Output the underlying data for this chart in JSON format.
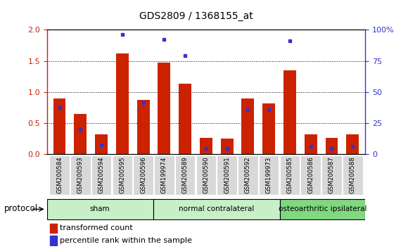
{
  "title": "GDS2809 / 1368155_at",
  "samples": [
    "GSM200584",
    "GSM200593",
    "GSM200594",
    "GSM200595",
    "GSM200596",
    "GSM199974",
    "GSM200589",
    "GSM200590",
    "GSM200591",
    "GSM200592",
    "GSM199973",
    "GSM200585",
    "GSM200586",
    "GSM200587",
    "GSM200588"
  ],
  "red_values": [
    0.9,
    0.65,
    0.32,
    1.62,
    0.88,
    1.48,
    1.14,
    0.26,
    0.25,
    0.9,
    0.82,
    1.35,
    0.32,
    0.27,
    0.32
  ],
  "blue_values": [
    0.75,
    0.4,
    0.15,
    1.93,
    0.83,
    1.85,
    1.59,
    0.1,
    0.1,
    0.72,
    0.72,
    1.82,
    0.13,
    0.1,
    0.13
  ],
  "groups": [
    {
      "label": "sham",
      "start": 0,
      "end": 5
    },
    {
      "label": "normal contralateral",
      "start": 5,
      "end": 11
    },
    {
      "label": "osteoarthritic ipsilateral",
      "start": 11,
      "end": 15
    }
  ],
  "group_color_light": "#c8f0c8",
  "group_color_dark": "#80d880",
  "ylim_left": [
    0,
    2.0
  ],
  "ylim_right": [
    0,
    100
  ],
  "yticks_left": [
    0,
    0.5,
    1.0,
    1.5,
    2.0
  ],
  "yticks_right": [
    0,
    25,
    50,
    75,
    100
  ],
  "bar_color": "#cc2200",
  "dot_color": "#3333cc",
  "legend_red": "transformed count",
  "legend_blue": "percentile rank within the sample",
  "protocol_label": "protocol"
}
